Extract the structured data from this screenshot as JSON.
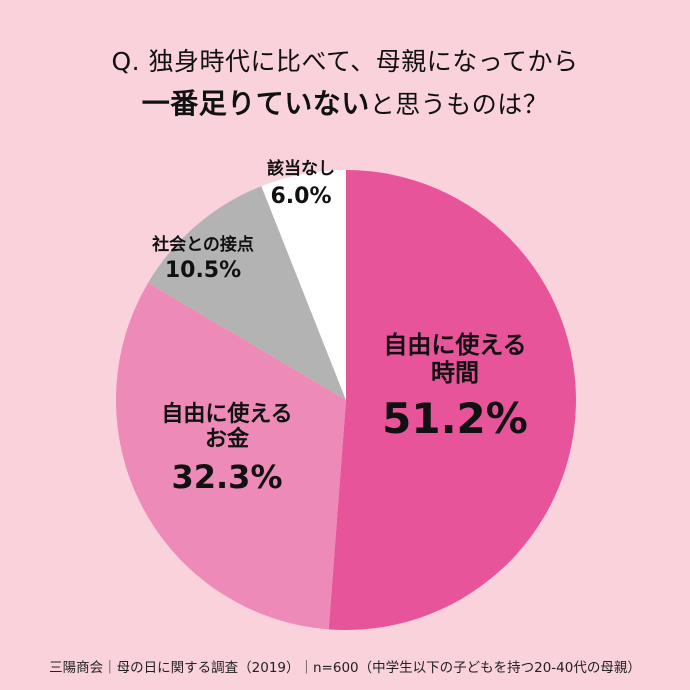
{
  "title": {
    "line1": "Q. 独身時代に比べて、母親になってから",
    "line2_strong": "一番足りていない",
    "line2_rest": "と思うものは？"
  },
  "chart_data": {
    "type": "pie",
    "slices": [
      {
        "label_line1": "自由に使える",
        "label_line2": "時間",
        "value": 51.2,
        "value_label": "51.2%",
        "color": "#e8549a"
      },
      {
        "label_line1": "自由に使える",
        "label_line2": "お金",
        "value": 32.3,
        "value_label": "32.3%",
        "color": "#ee8ab7"
      },
      {
        "label_line1": "社会との接点",
        "label_line2": "",
        "value": 10.5,
        "value_label": "10.5%",
        "color": "#b3b3b3"
      },
      {
        "label_line1": "該当なし",
        "label_line2": "",
        "value": 6.0,
        "value_label": "6.0%",
        "color": "#ffffff"
      }
    ]
  },
  "footer": "三陽商会｜母の日に関する調査（2019）｜n=600（中学生以下の子どもを持つ20-40代の母親）"
}
